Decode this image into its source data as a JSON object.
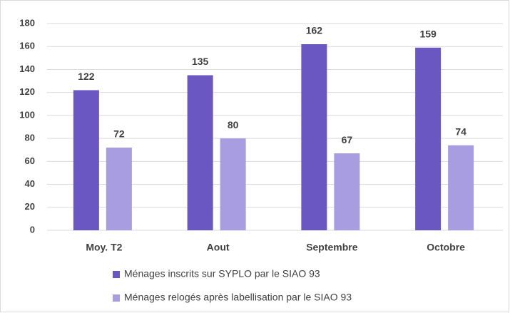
{
  "chart_data": {
    "type": "bar",
    "categories": [
      "Moy. T2",
      "Aout",
      "Septembre",
      "Octobre"
    ],
    "series": [
      {
        "name": "Ménages inscrits sur SYPLO par le SIAO 93",
        "color": "#6b57c2",
        "values": [
          122,
          135,
          162,
          159
        ]
      },
      {
        "name": "Ménages relogés après labellisation par le SIAO 93",
        "color": "#a99de2",
        "values": [
          72,
          80,
          67,
          74
        ]
      }
    ],
    "ylim": [
      0,
      180
    ],
    "yticks": [
      0,
      20,
      40,
      60,
      80,
      100,
      120,
      140,
      160,
      180
    ],
    "grid": true,
    "legend": "bottom"
  }
}
